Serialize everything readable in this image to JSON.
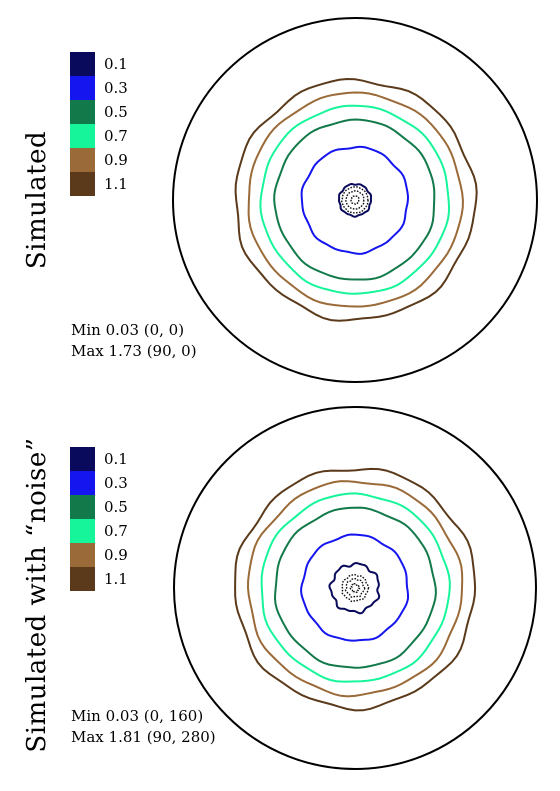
{
  "chart_data": [
    {
      "type": "polar-contour",
      "title": "Simulated",
      "levels": [
        0.1,
        0.3,
        0.5,
        0.7,
        0.9,
        1.1
      ],
      "level_labels": [
        "0.1",
        "0.3",
        "0.5",
        "0.7",
        "0.9",
        "1.1"
      ],
      "level_colors": [
        "#0a0a5c",
        "#1515f0",
        "#127a4a",
        "#17f59a",
        "#9a6a38",
        "#5a3a1a"
      ],
      "stats": {
        "min": "Min 0.03 (0, 0)",
        "max": "Max 1.73 (90, 0)"
      }
    },
    {
      "type": "polar-contour",
      "title": "Simulated with “noise”",
      "levels": [
        0.1,
        0.3,
        0.5,
        0.7,
        0.9,
        1.1
      ],
      "level_labels": [
        "0.1",
        "0.3",
        "0.5",
        "0.7",
        "0.9",
        "1.1"
      ],
      "level_colors": [
        "#0a0a5c",
        "#1515f0",
        "#127a4a",
        "#17f59a",
        "#9a6a38",
        "#5a3a1a"
      ],
      "stats": {
        "min": "Min 0.03 (0, 160)",
        "max": "Max 1.81 (90, 280)"
      }
    }
  ]
}
